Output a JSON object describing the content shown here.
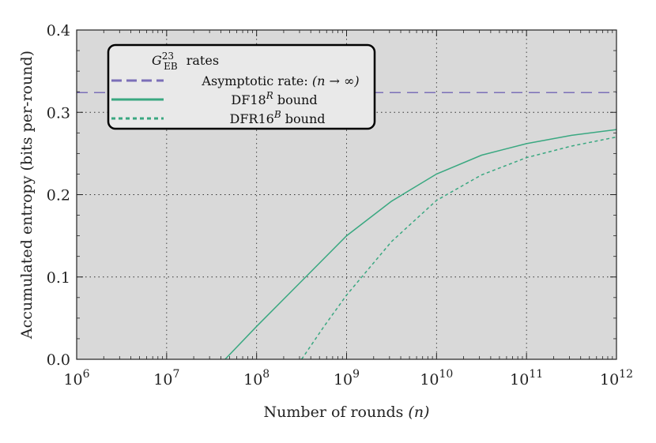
{
  "chart_data": {
    "type": "line",
    "xscale": "log",
    "xlim_exp": [
      6,
      12
    ],
    "ylim": [
      0,
      0.4
    ],
    "xlabel": "Number of rounds",
    "xlabel_var": "(n)",
    "ylabel": "Accumulated entropy (bits per-round)",
    "x_tick_base": "10",
    "x_tick_exponents": [
      "6",
      "7",
      "8",
      "9",
      "10",
      "11",
      "12"
    ],
    "y_ticks": [
      "0.0",
      "0.1",
      "0.2",
      "0.3",
      "0.4"
    ],
    "grid": true,
    "legend": {
      "title": "rates",
      "title_symbol": "G",
      "title_sub": "EB",
      "title_sup": "23",
      "placement": "top-left",
      "entries": [
        {
          "prefix": "Asymptotic rate: ",
          "math": "(n → ∞)",
          "sup": "",
          "suffix": ""
        },
        {
          "prefix": "DF18",
          "math": "",
          "sup": "R",
          "suffix": " bound"
        },
        {
          "prefix": "DFR16",
          "math": "",
          "sup": "B",
          "suffix": " bound"
        }
      ]
    },
    "series": [
      {
        "name": "Asymptotic rate",
        "style": "dashed-long",
        "color": "#7b6fb8",
        "x_log10": [
          6,
          12
        ],
        "y": [
          0.324,
          0.324
        ]
      },
      {
        "name": "DF18^R bound",
        "style": "solid",
        "color": "#3aa881",
        "x_log10": [
          7.65,
          8.0,
          8.5,
          9.0,
          9.5,
          10.0,
          10.5,
          11.0,
          11.5,
          12.0
        ],
        "y": [
          0.0,
          0.04,
          0.095,
          0.15,
          0.192,
          0.225,
          0.248,
          0.262,
          0.272,
          0.279
        ]
      },
      {
        "name": "DFR16^B bound",
        "style": "dotted",
        "color": "#3aa881",
        "x_log10": [
          8.5,
          8.75,
          9.0,
          9.5,
          10.0,
          10.5,
          11.0,
          11.5,
          12.0
        ],
        "y": [
          0.0,
          0.04,
          0.078,
          0.143,
          0.193,
          0.224,
          0.245,
          0.259,
          0.27
        ]
      }
    ]
  },
  "colors": {
    "plot_bg": "#d9d9d9",
    "legend_bg": "#e9e9e9",
    "grid": "#333333"
  }
}
